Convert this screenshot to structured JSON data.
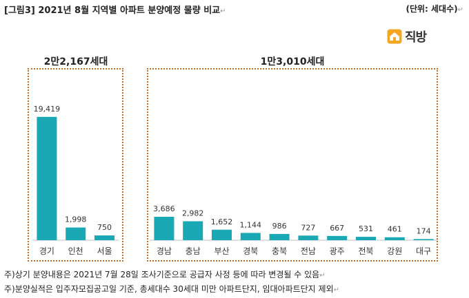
{
  "header": {
    "title": "[그림3] 2021년 8월 지역별 아파트 분양예정 물량 비교",
    "unit": "(단위: 세대수)"
  },
  "logo": {
    "text": "직방",
    "icon": "house-logo-icon"
  },
  "colors": {
    "bar": "#1aa9b4",
    "box": "#c56a1e",
    "axis": "#bfbfbf"
  },
  "groups": [
    {
      "label": "2만2,167세대"
    },
    {
      "label": "1만3,010세대"
    }
  ],
  "chart_data": {
    "type": "bar",
    "title": "[그림3] 2021년 8월 지역별 아파트 분양예정 물량 비교",
    "ylabel": "",
    "xlabel": "",
    "ylim": [
      0,
      22000
    ],
    "groups": [
      {
        "label": "2만2,167세대",
        "categories": [
          "경기",
          "인천",
          "서울"
        ],
        "values": [
          19419,
          1998,
          750
        ],
        "value_labels": [
          "19,419",
          "1,998",
          "750"
        ]
      },
      {
        "label": "1만3,010세대",
        "categories": [
          "경남",
          "충남",
          "부산",
          "경북",
          "충북",
          "전남",
          "광주",
          "전북",
          "강원",
          "대구"
        ],
        "values": [
          3686,
          2982,
          1652,
          1144,
          986,
          727,
          667,
          531,
          461,
          174
        ],
        "value_labels": [
          "3,686",
          "2,982",
          "1,652",
          "1,144",
          "986",
          "727",
          "667",
          "531",
          "461",
          "174"
        ]
      }
    ]
  },
  "notes": [
    "주)상기 분양내용은 2021년 7월 28일 조사기준으로 공급자 사정 등에 따라 변경될 수 있음",
    "주)분양실적은 입주자모집공고일 기준, 총세대수 30세대 미만 아파트단지, 임대아파트단지 제외"
  ]
}
